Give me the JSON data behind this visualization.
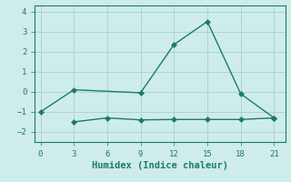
{
  "xlabel": "Humidex (Indice chaleur)",
  "line1_x": [
    0,
    3,
    9,
    12,
    15,
    18,
    21
  ],
  "line1_y": [
    -1.0,
    0.1,
    -0.05,
    2.35,
    3.5,
    -0.1,
    -1.3
  ],
  "line2_x": [
    3,
    6,
    9,
    12,
    15,
    18,
    21
  ],
  "line2_y": [
    -1.5,
    -1.3,
    -1.4,
    -1.38,
    -1.38,
    -1.38,
    -1.3
  ],
  "line_color": "#1c7a6f",
  "ax_facecolor": "#ceecea",
  "fig_facecolor": "#ceecea",
  "grid_color": "#aed4d0",
  "marker": "D",
  "marker_size": 3,
  "linewidth": 1.0,
  "ylim": [
    -2.5,
    4.3
  ],
  "xlim": [
    -0.5,
    22
  ],
  "xticks": [
    0,
    3,
    6,
    9,
    12,
    15,
    18,
    21
  ],
  "yticks": [
    -2,
    -1,
    0,
    1,
    2,
    3,
    4
  ],
  "tick_fontsize": 6.5,
  "xlabel_fontsize": 7.5,
  "font_family": "monospace"
}
